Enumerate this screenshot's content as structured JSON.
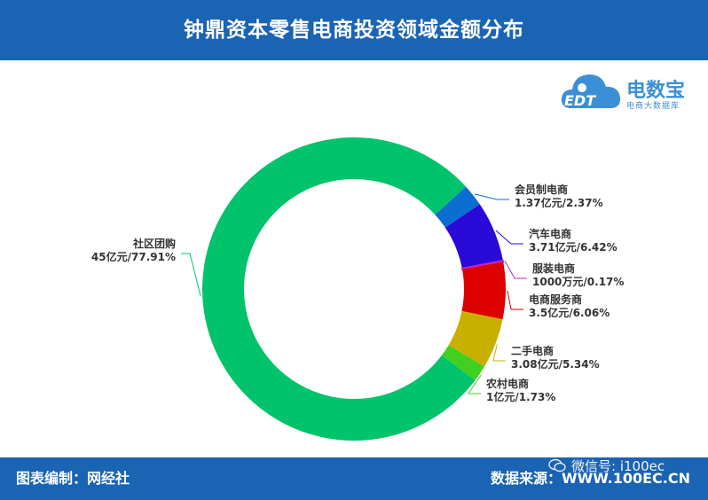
{
  "header": {
    "title": "钟鼎资本零售电商投资领域金额分布"
  },
  "logo": {
    "main": "电数宝",
    "sub": "电商大数据库",
    "badge": "EDT"
  },
  "footer": {
    "left": "图表编制：网经社",
    "right": "数据来源：WWW.100EC.CN"
  },
  "watermark": {
    "text": "微信号: i100ec"
  },
  "colors": {
    "header_bg": "#1a64b4"
  },
  "chart_data": {
    "type": "pie",
    "style": "donut",
    "title": "钟鼎资本零售电商投资领域金额分布",
    "slices": [
      {
        "name": "社区团购",
        "label": "45亿元/77.91%",
        "value": 77.91,
        "color": "#00c36c"
      },
      {
        "name": "会员制电商",
        "label": "1.37亿元/2.37%",
        "value": 2.37,
        "color": "#0a6fd0"
      },
      {
        "name": "汽车电商",
        "label": "3.71亿元/6.42%",
        "value": 6.42,
        "color": "#2a0ad8"
      },
      {
        "name": "服装电商",
        "label": "1000万元/0.17%",
        "value": 0.17,
        "color": "#c020c8"
      },
      {
        "name": "电商服务商",
        "label": "3.5亿元/6.06%",
        "value": 6.06,
        "color": "#dd0000"
      },
      {
        "name": "二手电商",
        "label": "3.08亿元/5.34%",
        "value": 5.34,
        "color": "#c8b000"
      },
      {
        "name": "农村电商",
        "label": "1亿元/1.73%",
        "value": 1.73,
        "color": "#40d020"
      }
    ]
  }
}
